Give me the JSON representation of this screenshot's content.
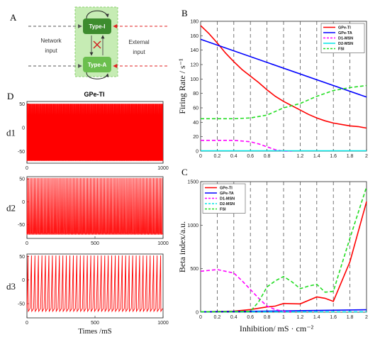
{
  "panels": {
    "A": "A",
    "B": "B",
    "C": "C",
    "D": "D"
  },
  "diagram": {
    "left_label_1": "Network",
    "left_label_2": "input",
    "right_label_1": "External",
    "right_label_2": "input",
    "box_top": "Type-I",
    "box_bottom": "Type-A",
    "colors": {
      "region": "#c6ecb4",
      "box_top": "#3d8c2e",
      "box_bottom": "#6bbf4e",
      "network_arrow": "#555555",
      "external_arrow": "#e02020",
      "inhibit": "#d02020"
    }
  },
  "traces": {
    "title": "GPe-TI",
    "xlabel": "Times /mS",
    "color": "#ff0000",
    "panels": [
      {
        "label": "d1",
        "x_ticks": [
          "0",
          "1000"
        ],
        "y_ticks": [
          "50",
          "0",
          "-50"
        ],
        "ylim": [
          -75,
          55
        ],
        "xlim": [
          0,
          1000
        ],
        "spike_count": 200,
        "spike_peak": 50,
        "trough": -63,
        "baseline": -70
      },
      {
        "label": "d2",
        "x_ticks": [
          "0",
          "500",
          "1000"
        ],
        "y_ticks": [
          "50",
          "0",
          "-50"
        ],
        "ylim": [
          -80,
          55
        ],
        "xlim": [
          0,
          1000
        ],
        "spike_count": 95,
        "spike_peak": 52,
        "trough": -68,
        "baseline": -72
      },
      {
        "label": "d3",
        "x_ticks": [
          "0",
          "500",
          "1000"
        ],
        "y_ticks": [
          "50",
          "0",
          "-50"
        ],
        "ylim": [
          -80,
          55
        ],
        "xlim": [
          0,
          1000
        ],
        "spike_count": 39,
        "spike_peak": 52,
        "trough": -66,
        "baseline": -60
      }
    ]
  },
  "chart_data": [
    {
      "type": "line",
      "panel": "B",
      "title": "",
      "xlabel": "",
      "ylabel": "Firing Rate / s⁻¹",
      "xlim": [
        0,
        2
      ],
      "ylim": [
        0,
        180
      ],
      "x_ticks": [
        0,
        0.2,
        0.4,
        0.6,
        0.8,
        1,
        1.2,
        1.4,
        1.6,
        1.8,
        2
      ],
      "y_ticks": [
        0,
        20,
        40,
        60,
        80,
        100,
        120,
        140,
        160,
        180
      ],
      "vlines": [
        0.2,
        0.4,
        0.6,
        0.8,
        1.0,
        1.2,
        1.4,
        1.6,
        1.8
      ],
      "legend_position": "top-right",
      "series": [
        {
          "name": "GPe-TI",
          "color": "#ff0000",
          "dash": "solid",
          "x": [
            0,
            0.1,
            0.2,
            0.3,
            0.4,
            0.5,
            0.6,
            0.7,
            0.8,
            0.9,
            1.0,
            1.1,
            1.2,
            1.3,
            1.4,
            1.5,
            1.6,
            1.7,
            1.8,
            1.9,
            2.0
          ],
          "y": [
            174,
            163,
            150,
            136,
            124,
            113,
            104,
            95,
            85,
            76,
            69,
            63,
            57,
            51,
            46,
            42,
            39,
            37,
            35,
            34,
            32
          ]
        },
        {
          "name": "GPe-TA",
          "color": "#0000ff",
          "dash": "solid",
          "x": [
            0,
            2
          ],
          "y": [
            155,
            75
          ]
        },
        {
          "name": "D1-MSN",
          "color": "#ff00ff",
          "dash": "dashed",
          "x": [
            0,
            0.2,
            0.4,
            0.6,
            0.7,
            0.8,
            0.9,
            1.0,
            1.1
          ],
          "y": [
            15,
            15,
            15,
            13,
            10,
            6,
            2,
            0,
            0
          ]
        },
        {
          "name": "D2-MSN",
          "color": "#00e5e5",
          "dash": "solid",
          "x": [
            0,
            2
          ],
          "y": [
            0.5,
            0.5
          ]
        },
        {
          "name": "FSI",
          "color": "#22dd22",
          "dash": "dashed",
          "x": [
            0,
            0.2,
            0.4,
            0.6,
            0.8,
            1.0,
            1.2,
            1.4,
            1.6,
            1.8,
            2.0
          ],
          "y": [
            45,
            45,
            45,
            46,
            50,
            60,
            66,
            76,
            84,
            88,
            91
          ]
        }
      ]
    },
    {
      "type": "line",
      "panel": "C",
      "title": "",
      "xlabel": "Inhibition/ mS · cm⁻²",
      "ylabel": "Beta index/a.u.",
      "xlim": [
        0,
        2
      ],
      "ylim": [
        0,
        1500
      ],
      "x_ticks": [
        0,
        0.2,
        0.4,
        0.6,
        0.8,
        1,
        1.2,
        1.4,
        1.6,
        1.8,
        2
      ],
      "y_ticks": [
        0,
        500,
        1000,
        1500
      ],
      "vlines": [
        0.2,
        0.4,
        0.6,
        0.8,
        1.0,
        1.2,
        1.4,
        1.6,
        1.8
      ],
      "legend_position": "top-left",
      "series": [
        {
          "name": "GPe-TI",
          "color": "#ff0000",
          "dash": "solid",
          "x": [
            0,
            0.2,
            0.4,
            0.6,
            0.8,
            0.9,
            1.0,
            1.2,
            1.4,
            1.5,
            1.6,
            1.8,
            2.0
          ],
          "y": [
            5,
            8,
            12,
            30,
            60,
            70,
            100,
            95,
            175,
            160,
            125,
            580,
            1270
          ]
        },
        {
          "name": "GPe-TA",
          "color": "#0000ff",
          "dash": "solid",
          "x": [
            0,
            1,
            2
          ],
          "y": [
            5,
            15,
            28
          ]
        },
        {
          "name": "D1-MSN",
          "color": "#ff00ff",
          "dash": "dashed",
          "x": [
            0,
            0.2,
            0.4,
            0.5,
            0.6,
            0.7,
            0.8,
            0.9,
            1.0,
            1.1
          ],
          "y": [
            470,
            490,
            450,
            360,
            260,
            160,
            70,
            30,
            10,
            5
          ]
        },
        {
          "name": "D2-MSN",
          "color": "#00e5e5",
          "dash": "dashed",
          "x": [
            0,
            2
          ],
          "y": [
            5,
            5
          ]
        },
        {
          "name": "FSI",
          "color": "#22dd22",
          "dash": "dashed",
          "x": [
            0,
            0.6,
            0.7,
            0.8,
            0.9,
            1.0,
            1.1,
            1.2,
            1.3,
            1.4,
            1.5,
            1.6,
            1.8,
            2.0
          ],
          "y": [
            5,
            10,
            120,
            290,
            360,
            410,
            350,
            270,
            300,
            320,
            230,
            240,
            850,
            1440
          ]
        }
      ]
    }
  ]
}
